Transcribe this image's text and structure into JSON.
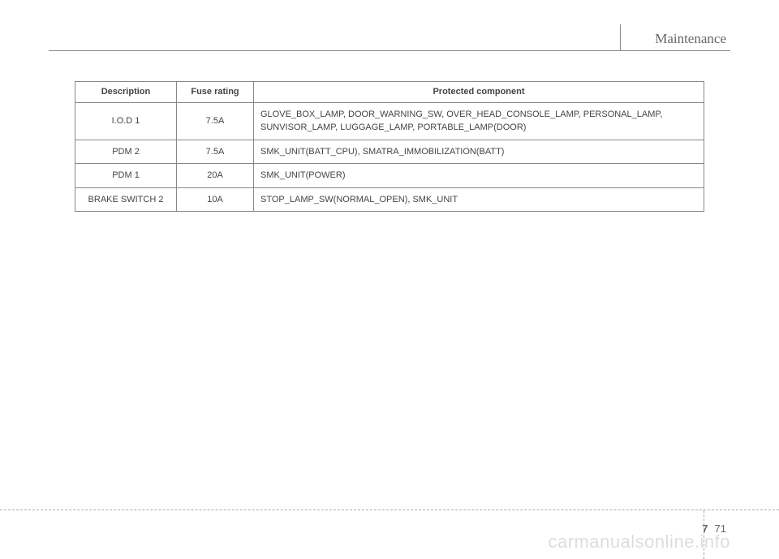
{
  "header": {
    "section_title": "Maintenance"
  },
  "table": {
    "columns": [
      "Description",
      "Fuse rating",
      "Protected component"
    ],
    "rows": [
      {
        "description": "I.O.D 1",
        "rating": "7.5A",
        "component": "GLOVE_BOX_LAMP, DOOR_WARNING_SW, OVER_HEAD_CONSOLE_LAMP, PERSONAL_LAMP, SUNVISOR_LAMP, LUGGAGE_LAMP, PORTABLE_LAMP(DOOR)"
      },
      {
        "description": "PDM 2",
        "rating": "7.5A",
        "component": "SMK_UNIT(BATT_CPU), SMATRA_IMMOBILIZATION(BATT)"
      },
      {
        "description": "PDM 1",
        "rating": "20A",
        "component": "SMK_UNIT(POWER)"
      },
      {
        "description": "BRAKE SWITCH 2",
        "rating": "10A",
        "component": "STOP_LAMP_SW(NORMAL_OPEN), SMK_UNIT"
      }
    ]
  },
  "footer": {
    "chapter": "7",
    "page": "71"
  },
  "watermark": "carmanualsonline.info"
}
